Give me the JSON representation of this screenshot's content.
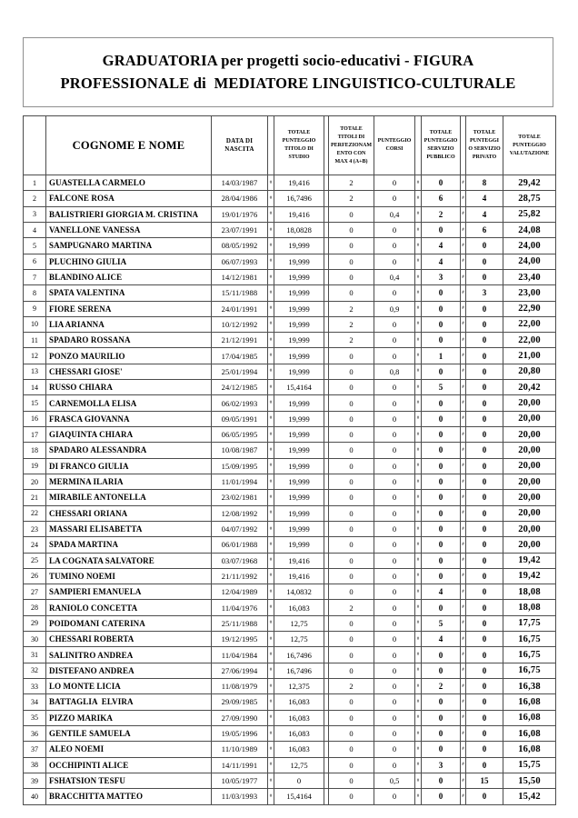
{
  "header": {
    "title_lines": [
      "GRADUATORIA per progetti socio-educativi - FIGURA",
      "PROFESSIONALE di  MEDIATORE LINGUISTICO-CULTURALE"
    ]
  },
  "table": {
    "overflow_marker": "#",
    "columns": {
      "rank": "",
      "name": "COGNOME E NOME",
      "date": "DATA DI NASCITA",
      "studio": "TOTALE PUNTEGGIO TITOLO DI STUDIO",
      "perfezionamento": "TOTALE TITOLI DI PERFEZIONAMENTO CON MAX 4 (A+B)",
      "corsi": "PUNTEGGIO CORSI",
      "pubblico": "TOTALE PUNTEGGIO SERVIZIO PUBBLICO",
      "privato": "TOTALE PUNTEGGIO SERVIZIO PRIVATO",
      "valutazione": "TOTALE PUNTEGGIO VALUTAZIONE"
    },
    "rows": [
      {
        "rank": "1",
        "name": "GUASTELLA CARMELO",
        "date": "14/03/1987",
        "studio": "19,416",
        "perf": "2",
        "corsi": "0",
        "pubblico": "0",
        "privato": "8",
        "totale": "29,42"
      },
      {
        "rank": "2",
        "name": "FALCONE ROSA",
        "date": "28/04/1986",
        "studio": "16,7496",
        "perf": "2",
        "corsi": "0",
        "pubblico": "6",
        "privato": "4",
        "totale": "28,75"
      },
      {
        "rank": "3",
        "name": "BALISTRIERI GIORGIA M. CRISTINA",
        "date": "19/01/1976",
        "studio": "19,416",
        "perf": "0",
        "corsi": "0,4",
        "pubblico": "2",
        "privato": "4",
        "totale": "25,82"
      },
      {
        "rank": "4",
        "name": "VANELLONE VANESSA",
        "date": "23/07/1991",
        "studio": "18,0828",
        "perf": "0",
        "corsi": "0",
        "pubblico": "0",
        "privato": "6",
        "totale": "24,08"
      },
      {
        "rank": "5",
        "name": "SAMPUGNARO MARTINA",
        "date": "08/05/1992",
        "studio": "19,999",
        "perf": "0",
        "corsi": "0",
        "pubblico": "4",
        "privato": "0",
        "totale": "24,00"
      },
      {
        "rank": "6",
        "name": "PLUCHINO GIULIA",
        "date": "06/07/1993",
        "studio": "19,999",
        "perf": "0",
        "corsi": "0",
        "pubblico": "4",
        "privato": "0",
        "totale": "24,00"
      },
      {
        "rank": "7",
        "name": "BLANDINO ALICE",
        "date": "14/12/1981",
        "studio": "19,999",
        "perf": "0",
        "corsi": "0,4",
        "pubblico": "3",
        "privato": "0",
        "totale": "23,40"
      },
      {
        "rank": "8",
        "name": "SPATA VALENTINA",
        "date": "15/11/1988",
        "studio": "19,999",
        "perf": "0",
        "corsi": "0",
        "pubblico": "0",
        "privato": "3",
        "totale": "23,00"
      },
      {
        "rank": "9",
        "name": "FIORE SERENA",
        "date": "24/01/1991",
        "studio": "19,999",
        "perf": "2",
        "corsi": "0,9",
        "pubblico": "0",
        "privato": "0",
        "totale": "22,90"
      },
      {
        "rank": "10",
        "name": "LIA ARIANNA",
        "date": "10/12/1992",
        "studio": "19,999",
        "perf": "2",
        "corsi": "0",
        "pubblico": "0",
        "privato": "0",
        "totale": "22,00"
      },
      {
        "rank": "11",
        "name": "SPADARO ROSSANA",
        "date": "21/12/1991",
        "studio": "19,999",
        "perf": "2",
        "corsi": "0",
        "pubblico": "0",
        "privato": "0",
        "totale": "22,00"
      },
      {
        "rank": "12",
        "name": "PONZO MAURILIO",
        "date": "17/04/1985",
        "studio": "19,999",
        "perf": "0",
        "corsi": "0",
        "pubblico": "1",
        "privato": "0",
        "totale": "21,00"
      },
      {
        "rank": "13",
        "name": "CHESSARI GIOSE'",
        "date": "25/01/1994",
        "studio": "19,999",
        "perf": "0",
        "corsi": "0,8",
        "pubblico": "0",
        "privato": "0",
        "totale": "20,80"
      },
      {
        "rank": "14",
        "name": "RUSSO CHIARA",
        "date": "24/12/1985",
        "studio": "15,4164",
        "perf": "0",
        "corsi": "0",
        "pubblico": "5",
        "privato": "0",
        "totale": "20,42"
      },
      {
        "rank": "15",
        "name": "CARNEMOLLA ELISA",
        "date": "06/02/1993",
        "studio": "19,999",
        "perf": "0",
        "corsi": "0",
        "pubblico": "0",
        "privato": "0",
        "totale": "20,00"
      },
      {
        "rank": "16",
        "name": "FRASCA GIOVANNA",
        "date": "09/05/1991",
        "studio": "19,999",
        "perf": "0",
        "corsi": "0",
        "pubblico": "0",
        "privato": "0",
        "totale": "20,00"
      },
      {
        "rank": "17",
        "name": "GIAQUINTA CHIARA",
        "date": "06/05/1995",
        "studio": "19,999",
        "perf": "0",
        "corsi": "0",
        "pubblico": "0",
        "privato": "0",
        "totale": "20,00"
      },
      {
        "rank": "18",
        "name": "SPADARO ALESSANDRA",
        "date": "10/08/1987",
        "studio": "19,999",
        "perf": "0",
        "corsi": "0",
        "pubblico": "0",
        "privato": "0",
        "totale": "20,00"
      },
      {
        "rank": "19",
        "name": "DI FRANCO GIULIA",
        "date": "15/09/1995",
        "studio": "19,999",
        "perf": "0",
        "corsi": "0",
        "pubblico": "0",
        "privato": "0",
        "totale": "20,00"
      },
      {
        "rank": "20",
        "name": "MERMINA ILARIA",
        "date": "11/01/1994",
        "studio": "19,999",
        "perf": "0",
        "corsi": "0",
        "pubblico": "0",
        "privato": "0",
        "totale": "20,00"
      },
      {
        "rank": "21",
        "name": "MIRABILE ANTONELLA",
        "date": "23/02/1981",
        "studio": "19,999",
        "perf": "0",
        "corsi": "0",
        "pubblico": "0",
        "privato": "0",
        "totale": "20,00"
      },
      {
        "rank": "22",
        "name": "CHESSARI ORIANA",
        "date": "12/08/1992",
        "studio": "19,999",
        "perf": "0",
        "corsi": "0",
        "pubblico": "0",
        "privato": "0",
        "totale": "20,00"
      },
      {
        "rank": "23",
        "name": "MASSARI ELISABETTA",
        "date": "04/07/1992",
        "studio": "19,999",
        "perf": "0",
        "corsi": "0",
        "pubblico": "0",
        "privato": "0",
        "totale": "20,00"
      },
      {
        "rank": "24",
        "name": "SPADA MARTINA",
        "date": "06/01/1988",
        "studio": "19,999",
        "perf": "0",
        "corsi": "0",
        "pubblico": "0",
        "privato": "0",
        "totale": "20,00"
      },
      {
        "rank": "25",
        "name": "LA COGNATA SALVATORE",
        "date": "03/07/1968",
        "studio": "19,416",
        "perf": "0",
        "corsi": "0",
        "pubblico": "0",
        "privato": "0",
        "totale": "19,42"
      },
      {
        "rank": "26",
        "name": "TUMINO NOEMI",
        "date": "21/11/1992",
        "studio": "19,416",
        "perf": "0",
        "corsi": "0",
        "pubblico": "0",
        "privato": "0",
        "totale": "19,42"
      },
      {
        "rank": "27",
        "name": "SAMPIERI EMANUELA",
        "date": "12/04/1989",
        "studio": "14,0832",
        "perf": "0",
        "corsi": "0",
        "pubblico": "4",
        "privato": "0",
        "totale": "18,08"
      },
      {
        "rank": "28",
        "name": "RANIOLO CONCETTA",
        "date": "11/04/1976",
        "studio": "16,083",
        "perf": "2",
        "corsi": "0",
        "pubblico": "0",
        "privato": "0",
        "totale": "18,08"
      },
      {
        "rank": "29",
        "name": "POIDOMANI CATERINA",
        "date": "25/11/1988",
        "studio": "12,75",
        "perf": "0",
        "corsi": "0",
        "pubblico": "5",
        "privato": "0",
        "totale": "17,75"
      },
      {
        "rank": "30",
        "name": "CHESSARI ROBERTA",
        "date": "19/12/1995",
        "studio": "12,75",
        "perf": "0",
        "corsi": "0",
        "pubblico": "4",
        "privato": "0",
        "totale": "16,75"
      },
      {
        "rank": "31",
        "name": "SALINITRO ANDREA",
        "date": "11/04/1984",
        "studio": "16,7496",
        "perf": "0",
        "corsi": "0",
        "pubblico": "0",
        "privato": "0",
        "totale": "16,75"
      },
      {
        "rank": "32",
        "name": "DISTEFANO ANDREA",
        "date": "27/06/1994",
        "studio": "16,7496",
        "perf": "0",
        "corsi": "0",
        "pubblico": "0",
        "privato": "0",
        "totale": "16,75"
      },
      {
        "rank": "33",
        "name": "LO MONTE LICIA",
        "date": "11/08/1979",
        "studio": "12,375",
        "perf": "2",
        "corsi": "0",
        "pubblico": "2",
        "privato": "0",
        "totale": "16,38"
      },
      {
        "rank": "34",
        "name": "BATTAGLIA  ELVIRA",
        "date": "29/09/1985",
        "studio": "16,083",
        "perf": "0",
        "corsi": "0",
        "pubblico": "0",
        "privato": "0",
        "totale": "16,08"
      },
      {
        "rank": "35",
        "name": "PIZZO MARIKA",
        "date": "27/09/1990",
        "studio": "16,083",
        "perf": "0",
        "corsi": "0",
        "pubblico": "0",
        "privato": "0",
        "totale": "16,08"
      },
      {
        "rank": "36",
        "name": "GENTILE SAMUELA",
        "date": "19/05/1996",
        "studio": "16,083",
        "perf": "0",
        "corsi": "0",
        "pubblico": "0",
        "privato": "0",
        "totale": "16,08"
      },
      {
        "rank": "37",
        "name": "ALEO NOEMI",
        "date": "11/10/1989",
        "studio": "16,083",
        "perf": "0",
        "corsi": "0",
        "pubblico": "0",
        "privato": "0",
        "totale": "16,08"
      },
      {
        "rank": "38",
        "name": "OCCHIPINTI ALICE",
        "date": "14/11/1991",
        "studio": "12,75",
        "perf": "0",
        "corsi": "0",
        "pubblico": "3",
        "privato": "0",
        "totale": "15,75"
      },
      {
        "rank": "39",
        "name": "FSHATSION TESFU",
        "date": "10/05/1977",
        "studio": "0",
        "perf": "0",
        "corsi": "0,5",
        "pubblico": "0",
        "privato": "15",
        "totale": "15,50"
      },
      {
        "rank": "40",
        "name": "BRACCHITTA MATTEO",
        "date": "11/03/1993",
        "studio": "15,4164",
        "perf": "0",
        "corsi": "0",
        "pubblico": "0",
        "privato": "0",
        "totale": "15,42"
      }
    ]
  }
}
